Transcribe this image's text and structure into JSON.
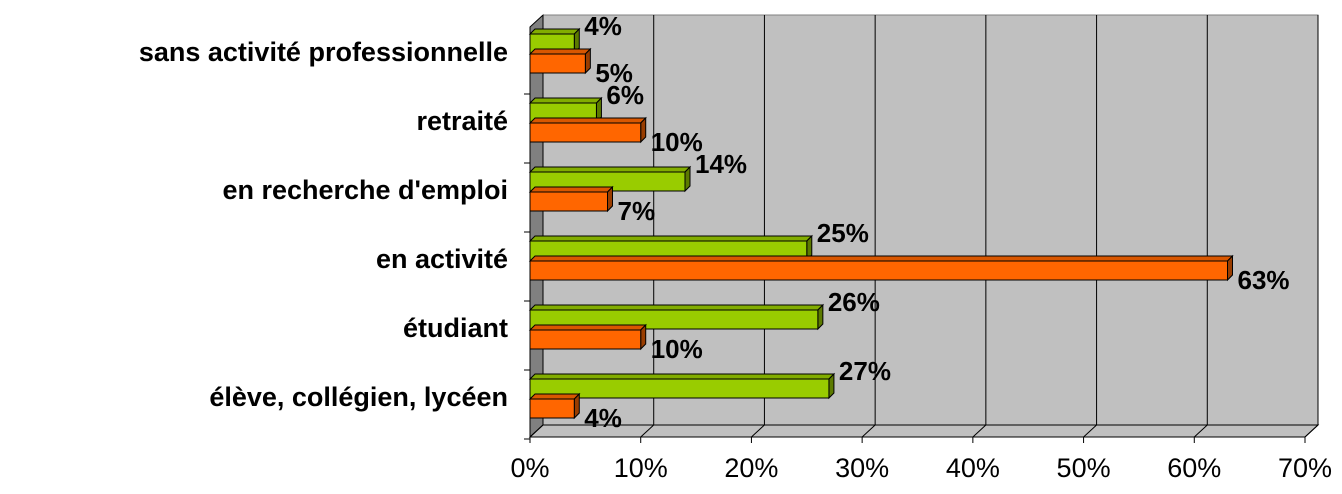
{
  "chart_data": {
    "type": "bar3d_horizontal",
    "categories": [
      "élève, collégien, lycéen",
      "étudiant",
      "en activité",
      "en recherche d'emploi",
      "retraité",
      "sans activité professionnelle"
    ],
    "series": [
      {
        "color": "#99cc00",
        "values": [
          27,
          26,
          25,
          14,
          6,
          4
        ],
        "value_labels": [
          "27%",
          "26%",
          "25%",
          "14%",
          "6%",
          "4%"
        ]
      },
      {
        "color": "#ff6600",
        "values": [
          4,
          10,
          63,
          7,
          10,
          5
        ],
        "value_labels": [
          "4%",
          "10%",
          "63%",
          "7%",
          "10%",
          "5%"
        ]
      }
    ],
    "xlim": [
      0,
      70
    ],
    "xticks": [
      {
        "value": 0,
        "label": "0%"
      },
      {
        "value": 10,
        "label": "10%"
      },
      {
        "value": 20,
        "label": "20%"
      },
      {
        "value": 30,
        "label": "30%"
      },
      {
        "value": 40,
        "label": "40%"
      },
      {
        "value": 50,
        "label": "50%"
      },
      {
        "value": 60,
        "label": "60%"
      },
      {
        "value": 70,
        "label": "70%"
      }
    ],
    "grid": true
  }
}
